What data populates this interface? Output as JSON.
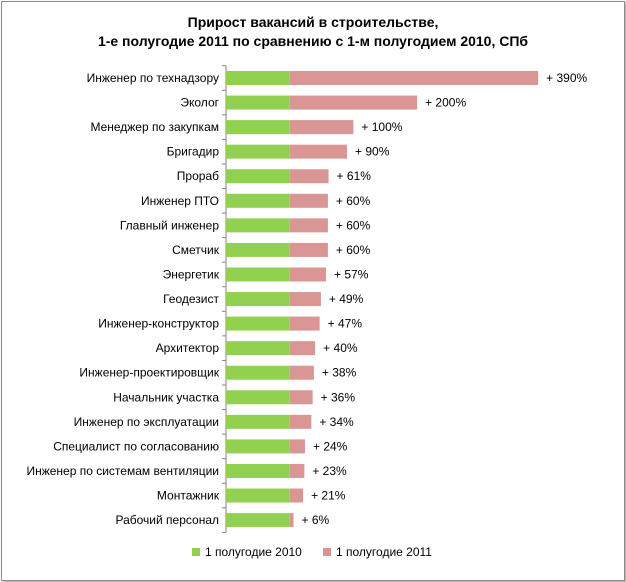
{
  "chart_data": {
    "type": "bar",
    "orientation": "horizontal",
    "stacked": true,
    "title_line1": "Прирост вакансий в строительстве,",
    "title_line2": "1-е полугодие 2011 по сравнению с 1-м полугодием 2010, СПб",
    "categories": [
      "Инженер по технадзору",
      "Эколог",
      "Менеджер по закупкам",
      "Бригадир",
      "Прораб",
      "Инженер ПТО",
      "Главный инженер",
      "Сметчик",
      "Энергетик",
      "Геодезист",
      "Инженер-конструктор",
      "Архитектор",
      "Инженер-проектировщик",
      "Начальник участка",
      "Инженер по эксплуатации",
      "Специалист по согласованию",
      "Инженер по системам вентиляции",
      "Монтажник",
      "Рабочий персонал"
    ],
    "series": [
      {
        "name": "1 полугодие 2010",
        "color": "#92d050",
        "values": [
          100,
          100,
          100,
          100,
          100,
          100,
          100,
          100,
          100,
          100,
          100,
          100,
          100,
          100,
          100,
          100,
          100,
          100,
          100
        ]
      },
      {
        "name": "1 полугодие 2011",
        "color": "#d99694",
        "values": [
          390,
          200,
          100,
          90,
          61,
          60,
          60,
          60,
          57,
          49,
          47,
          40,
          38,
          36,
          34,
          24,
          23,
          21,
          6
        ]
      }
    ],
    "data_labels": [
      "+ 390%",
      "+ 200%",
      "+ 100%",
      "+ 90%",
      "+ 61%",
      "+ 60%",
      "+ 60%",
      "+ 60%",
      "+ 57%",
      "+ 49%",
      "+ 47%",
      "+ 40%",
      "+ 38%",
      "+ 36%",
      "+ 34%",
      "+ 24%",
      "+ 23%",
      "+ 21%",
      "+ 6%"
    ],
    "legend_position": "bottom",
    "grid": false
  }
}
